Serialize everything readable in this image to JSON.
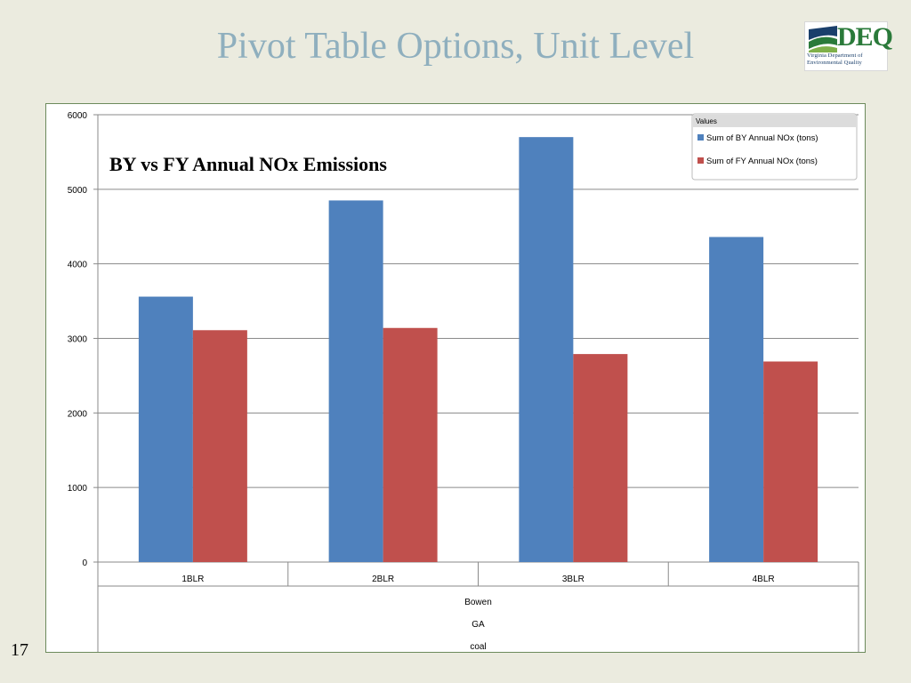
{
  "slide": {
    "title": "Pivot Table Options, Unit Level",
    "number": "17"
  },
  "logo": {
    "mark": "DEQ",
    "line1": "Virginia Department of",
    "line2": "Environmental Quality"
  },
  "colors": {
    "background": "#ebebdf",
    "title": "#8fafbe",
    "series_by": "#4f81bd",
    "series_fy": "#c0504d",
    "logo_green": "#2a7a3a",
    "logo_blue": "#1a3f6b"
  },
  "chart_data": {
    "type": "bar",
    "title": "BY vs FY Annual NOx Emissions",
    "categories": [
      "1BLR",
      "2BLR",
      "3BLR",
      "4BLR"
    ],
    "group_labels": [
      "Bowen",
      "GA",
      "coal"
    ],
    "legend_title": "Values",
    "legend_position": "top-right",
    "series": [
      {
        "name": "Sum of BY Annual NOx (tons)",
        "color": "#4f81bd",
        "values": [
          3560,
          4850,
          5700,
          4360
        ]
      },
      {
        "name": "Sum of FY Annual NOx (tons)",
        "color": "#c0504d",
        "values": [
          3110,
          3140,
          2790,
          2690
        ]
      }
    ],
    "ylim": [
      0,
      6000
    ],
    "yticks": [
      0,
      1000,
      2000,
      3000,
      4000,
      5000,
      6000
    ],
    "grid": true
  }
}
